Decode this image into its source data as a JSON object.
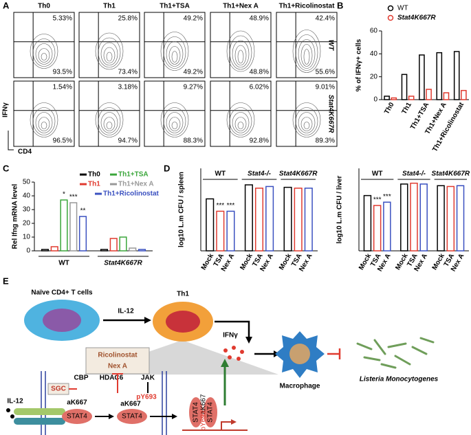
{
  "panel_labels": [
    "A",
    "B",
    "C",
    "D",
    "E"
  ],
  "panel_a": {
    "columns": [
      "Th0",
      "Th1",
      "Th1+TSA",
      "Th1+Nex A",
      "Th1+Ricolinostat"
    ],
    "rows": [
      {
        "label": "WT",
        "cells": [
          {
            "top": "5.33%",
            "bottom": "93.5%"
          },
          {
            "top": "25.8%",
            "bottom": "73.4%"
          },
          {
            "top": "49.2%",
            "bottom": "49.2%"
          },
          {
            "top": "48.9%",
            "bottom": "48.8%"
          },
          {
            "top": "42.4%",
            "bottom": "55.6%"
          }
        ]
      },
      {
        "label": "Stat4K667R",
        "cells": [
          {
            "top": "1.54%",
            "bottom": "96.5%"
          },
          {
            "top": "3.18%",
            "bottom": "94.7%"
          },
          {
            "top": "9.27%",
            "bottom": "88.3%"
          },
          {
            "top": "6.02%",
            "bottom": "92.8%"
          },
          {
            "top": "9.01%",
            "bottom": "89.3%"
          }
        ]
      }
    ],
    "y_label": "IFNγ",
    "x_label": "CD4"
  },
  "chart_data": [
    {
      "type": "bar",
      "ylabel": "% of IFNγ+ cells",
      "categories": [
        "Th0",
        "Th1",
        "Th1+TSA",
        "Th1+Nex A",
        "Th1+Ricolinostat"
      ],
      "series": [
        {
          "name": "WT",
          "color": "#000000",
          "values": [
            3,
            22,
            39,
            41,
            42
          ]
        },
        {
          "name": "Stat4K667R",
          "color": "#e03a2f",
          "values": [
            1.5,
            3,
            9,
            6,
            8
          ]
        }
      ],
      "ylim": [
        0,
        60
      ],
      "yticks": [
        0,
        20,
        40,
        60
      ],
      "legend": "top-left"
    },
    {
      "type": "bar",
      "ylabel": "Rel Ifng mRNA level",
      "categories": [
        "WT",
        "Stat4K667R"
      ],
      "series": [
        {
          "name": "Th0",
          "color": "#000000",
          "values": [
            1,
            1
          ]
        },
        {
          "name": "Th1",
          "color": "#e03a2f",
          "values": [
            3,
            9
          ]
        },
        {
          "name": "Th1+TSA",
          "color": "#3aa63a",
          "values": [
            37,
            10
          ]
        },
        {
          "name": "Th1+Nex A",
          "color": "#999999",
          "values": [
            35,
            2
          ]
        },
        {
          "name": "Th1+Ricolinostat",
          "color": "#3a50c0",
          "values": [
            25,
            1
          ]
        }
      ],
      "ylim": [
        0,
        50
      ],
      "yticks": [
        0,
        10,
        20,
        30,
        40,
        50
      ],
      "legend": "top-right",
      "annotations": [
        {
          "text": "*",
          "category": "WT",
          "series": "Th1+TSA"
        },
        {
          "text": "***",
          "category": "WT",
          "series": "Th1+Nex A"
        },
        {
          "text": "**",
          "category": "WT",
          "series": "Th1+Ricolinostat"
        }
      ]
    },
    {
      "type": "bar",
      "ylabel": "log10 L.m CFU / spleen",
      "categories": [
        "WT",
        "Stat4-/-",
        "Stat4K667R"
      ],
      "series": [
        {
          "name": "Mock",
          "color": "#000000",
          "values": [
            6.3,
            8.0,
            7.7
          ]
        },
        {
          "name": "TSA",
          "color": "#e03a2f",
          "values": [
            4.8,
            7.6,
            7.6
          ]
        },
        {
          "name": "Nex A",
          "color": "#3a50c0",
          "values": [
            4.8,
            7.8,
            7.6
          ]
        }
      ],
      "ylim": [
        0,
        10
      ],
      "annotations": [
        {
          "text": "***",
          "category": "WT",
          "series": "TSA"
        },
        {
          "text": "***",
          "category": "WT",
          "series": "Nex A"
        }
      ]
    },
    {
      "type": "bar",
      "ylabel": "log10 L.m CFU / liver",
      "categories": [
        "WT",
        "Stat4-/-",
        "Stat4K667R"
      ],
      "series": [
        {
          "name": "Mock",
          "color": "#000000",
          "values": [
            6.7,
            8.1,
            7.9
          ]
        },
        {
          "name": "TSA",
          "color": "#e03a2f",
          "values": [
            5.5,
            8.2,
            7.8
          ]
        },
        {
          "name": "Nex A",
          "color": "#3a50c0",
          "values": [
            5.9,
            8.1,
            7.9
          ]
        }
      ],
      "ylim": [
        0,
        10
      ],
      "annotations": [
        {
          "text": "***",
          "category": "WT",
          "series": "TSA"
        },
        {
          "text": "***",
          "category": "WT",
          "series": "Nex A"
        }
      ]
    }
  ],
  "diagram": {
    "naive": "Naïve CD4+ T cells",
    "il12_arrow": "IL-12",
    "th1": "Th1",
    "ifng": "IFNγ",
    "macrophage": "Macrophage",
    "listeria": "Listeria  Monocytogenes",
    "drug1": "Ricolinostat",
    "drug2": "Nex A",
    "cbp": "CBP",
    "hdac6": "HDAC6",
    "jak": "JAK",
    "sgc": "SGC",
    "il12_receptor": "IL-12",
    "ak667_1": "aK667",
    "stat4_1": "STAT4",
    "ak667_2": "aK667",
    "py693": "pY693",
    "stat4_2": "STAT4",
    "dimer_stat4_a": "STAT4",
    "dimer_stat4_b": "STAT4",
    "dimer_ak667": "aK667",
    "dimer_py693": "pY693"
  }
}
